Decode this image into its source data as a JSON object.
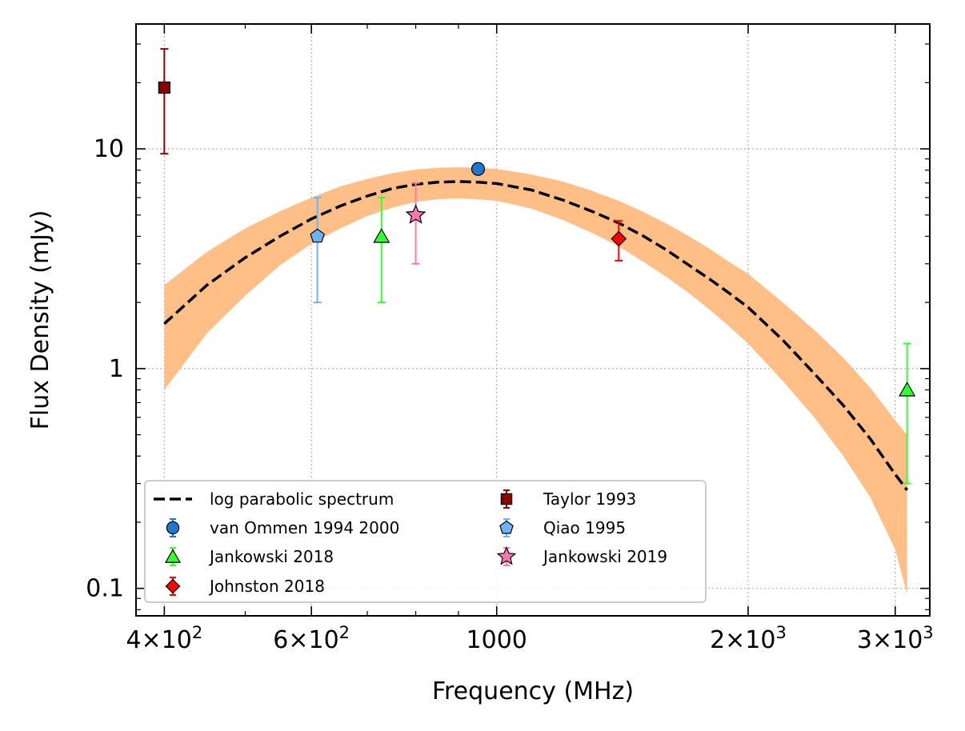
{
  "chart_data": {
    "type": "scatter",
    "title": "",
    "xlabel": "Frequency (MHz)",
    "ylabel": "Flux Density (mJy)",
    "xscale": "log",
    "yscale": "log",
    "xlim": [
      370,
      3300
    ],
    "ylim": [
      0.075,
      37
    ],
    "grid": true,
    "legend_position": "lower-left",
    "x_ticks": [
      {
        "value": 400,
        "mant": "4",
        "exp": "2"
      },
      {
        "value": 600,
        "mant": "6",
        "exp": "2"
      },
      {
        "value": 1000,
        "text": "1000"
      },
      {
        "value": 2000,
        "mant": "2",
        "exp": "3"
      },
      {
        "value": 3000,
        "mant": "3",
        "exp": "3"
      }
    ],
    "y_ticks": [
      {
        "value": 0.1,
        "text": "0.1"
      },
      {
        "value": 1,
        "text": "1"
      },
      {
        "value": 10,
        "text": "10"
      }
    ],
    "model": {
      "name": "log parabolic spectrum",
      "x": [
        400,
        450,
        500,
        550,
        600,
        650,
        700,
        750,
        800,
        850,
        900,
        950,
        1000,
        1100,
        1200,
        1300,
        1400,
        1500,
        1600,
        1700,
        1800,
        1900,
        2000,
        2200,
        2400,
        2600,
        2800,
        3000,
        3100
      ],
      "y": [
        1.6,
        2.4,
        3.2,
        4.0,
        4.8,
        5.5,
        6.1,
        6.6,
        6.9,
        7.05,
        7.1,
        7.05,
        6.95,
        6.5,
        5.85,
        5.2,
        4.6,
        4.0,
        3.45,
        2.95,
        2.55,
        2.2,
        1.9,
        1.35,
        0.95,
        0.68,
        0.48,
        0.33,
        0.28
      ],
      "band_lower": [
        0.8,
        1.45,
        2.15,
        2.95,
        3.7,
        4.35,
        4.95,
        5.4,
        5.75,
        5.9,
        5.95,
        5.9,
        5.8,
        5.35,
        4.75,
        4.15,
        3.6,
        3.05,
        2.6,
        2.2,
        1.85,
        1.55,
        1.3,
        0.88,
        0.6,
        0.4,
        0.26,
        0.15,
        0.094
      ],
      "band_upper": [
        2.4,
        3.4,
        4.35,
        5.2,
        6.0,
        6.75,
        7.3,
        7.75,
        8.05,
        8.2,
        8.25,
        8.2,
        8.1,
        7.65,
        7.1,
        6.45,
        5.8,
        5.15,
        4.55,
        4.0,
        3.5,
        3.05,
        2.7,
        2.0,
        1.5,
        1.12,
        0.82,
        0.58,
        0.5
      ],
      "line_color": "#000000",
      "band_color": "#ffbf86"
    },
    "series": [
      {
        "name": "van Ommen 1994 2000",
        "marker": "circle",
        "color": "#1f77d0",
        "ecolor": "#1f77d0",
        "points": [
          {
            "x": 950,
            "y": 8.1,
            "ylo": 7.7,
            "yhi": 8.5
          }
        ]
      },
      {
        "name": "Jankowski 2018",
        "marker": "triangle",
        "color": "#33ff33",
        "ecolor": "#33ff33",
        "points": [
          {
            "x": 728,
            "y": 4.0,
            "ylo": 2.0,
            "yhi": 6.0
          },
          {
            "x": 3100,
            "y": 0.8,
            "ylo": 0.3,
            "yhi": 1.3
          }
        ]
      },
      {
        "name": "Johnston 2018",
        "marker": "diamond",
        "color": "#ff0000",
        "ecolor": "#ff0000",
        "points": [
          {
            "x": 1400,
            "y": 3.9,
            "ylo": 3.1,
            "yhi": 4.7
          }
        ]
      },
      {
        "name": "Taylor 1993",
        "marker": "square",
        "color": "#8b0000",
        "ecolor": "#8b0000",
        "points": [
          {
            "x": 400,
            "y": 19.0,
            "ylo": 9.5,
            "yhi": 28.5
          }
        ]
      },
      {
        "name": "Qiao 1995",
        "marker": "pentagon",
        "color": "#6fb3f5",
        "ecolor": "#6fb3f5",
        "points": [
          {
            "x": 610,
            "y": 4.0,
            "ylo": 2.0,
            "yhi": 6.0
          }
        ]
      },
      {
        "name": "Jankowski 2019",
        "marker": "star",
        "color": "#ff78b4",
        "ecolor": "#ff78b4",
        "points": [
          {
            "x": 800,
            "y": 5.0,
            "ylo": 3.0,
            "yhi": 7.0
          }
        ]
      }
    ]
  }
}
